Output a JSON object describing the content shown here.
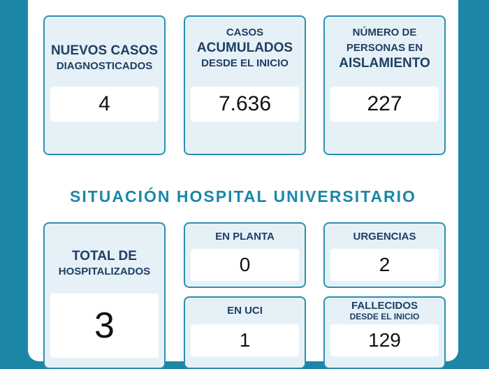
{
  "top": {
    "nuevos": {
      "line1": "NUEVOS CASOS",
      "line2": "DIAGNOSTICADOS",
      "value": "4"
    },
    "acumulados": {
      "line1": "CASOS",
      "line2": "ACUMULADOS",
      "line3": "DESDE EL INICIO",
      "value": "7.636"
    },
    "aislamiento": {
      "line1": "NÚMERO DE",
      "line2": "PERSONAS EN",
      "line3": "AISLAMIENTO",
      "value": "227"
    }
  },
  "section_title": "SITUACIÓN HOSPITAL UNIVERSITARIO",
  "hospital": {
    "total": {
      "line1": "TOTAL DE",
      "line2": "HOSPITALIZADOS",
      "value": "3"
    },
    "planta": {
      "label": "EN PLANTA",
      "value": "0"
    },
    "urgencias": {
      "label": "URGENCIAS",
      "value": "2"
    },
    "uci": {
      "label": "EN UCI",
      "value": "1"
    },
    "fallecidos": {
      "line1": "FALLECIDOS",
      "line2": "DESDE EL INICIO",
      "value": "129"
    }
  },
  "colors": {
    "background": "#1c86a8",
    "card_border": "#2c8fb0",
    "card_fill": "#e6f1f7",
    "heading_text": "#1e3f63"
  }
}
